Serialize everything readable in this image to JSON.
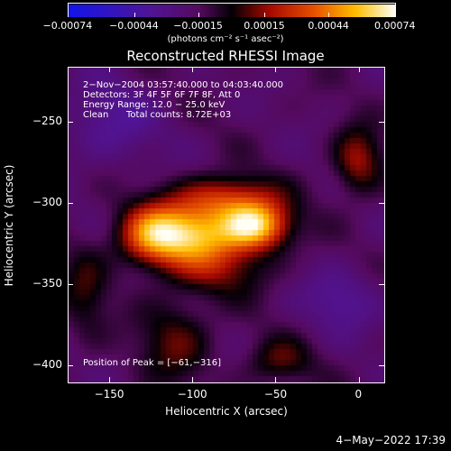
{
  "chart_data": {
    "type": "heatmap",
    "title": "Reconstructed RHESSI Image",
    "xlabel": "Heliocentric X (arcsec)",
    "ylabel": "Heliocentric Y (arcsec)",
    "xlim": [
      -175,
      16
    ],
    "ylim": [
      -411,
      -216
    ],
    "x_ticks": [
      -150,
      -100,
      -50,
      0
    ],
    "y_ticks": [
      -250,
      -300,
      -350,
      -400
    ],
    "x_tick_labels": [
      "−150",
      "−100",
      "−50",
      "0"
    ],
    "y_tick_labels": [
      "−250",
      "−300",
      "−350",
      "−400"
    ],
    "colorbar": {
      "range": [
        -0.00074,
        0.00074
      ],
      "ticks": [
        -0.00074,
        -0.00044,
        -0.00015,
        0.00015,
        0.00044,
        0.00074
      ],
      "tick_labels": [
        "−0.00074",
        "−0.00044",
        "−0.00015",
        "0.00015",
        "0.00044",
        "0.00074"
      ],
      "unit_label": "(photons cm⁻² s⁻¹ asec⁻²)"
    },
    "annotations": {
      "line1": "2−Nov−2004 03:57:40.000 to 04:03:40.000",
      "line2": "Detectors: 3F 4F 5F 6F 7F 8F, Att 0",
      "line3": "Energy Range: 12.0 − 25.0 keV",
      "line4_clean": "Clean",
      "line4_counts": "Total counts: 8.72E+03",
      "peak": "Position of Peak = [−61,−316]"
    },
    "peak_position": [
      -61,
      -316
    ],
    "sources": [
      {
        "x": -62,
        "y": -314,
        "amp": 1.0,
        "sx": 14,
        "sy": 10
      },
      {
        "x": -100,
        "y": -319,
        "amp": 0.85,
        "sx": 20,
        "sy": 12
      },
      {
        "x": -125,
        "y": -320,
        "amp": 0.65,
        "sx": 14,
        "sy": 13
      },
      {
        "x": -80,
        "y": -297,
        "amp": 0.55,
        "sx": 22,
        "sy": 10
      },
      {
        "x": -85,
        "y": -340,
        "amp": 0.35,
        "sx": 22,
        "sy": 12
      },
      {
        "x": -110,
        "y": -385,
        "amp": 0.32,
        "sx": 15,
        "sy": 18
      },
      {
        "x": 0,
        "y": -274,
        "amp": 0.45,
        "sx": 10,
        "sy": 14
      },
      {
        "x": -165,
        "y": -355,
        "amp": 0.25,
        "sx": 10,
        "sy": 20
      },
      {
        "x": -48,
        "y": -398,
        "amp": 0.3,
        "sx": 14,
        "sy": 10
      },
      {
        "x": -10,
        "y": -360,
        "amp": -0.25,
        "sx": 16,
        "sy": 14
      },
      {
        "x": -150,
        "y": -250,
        "amp": -0.25,
        "sx": 20,
        "sy": 18
      }
    ],
    "background_level": -0.22
  },
  "timestamp": "4−May−2022 17:39"
}
